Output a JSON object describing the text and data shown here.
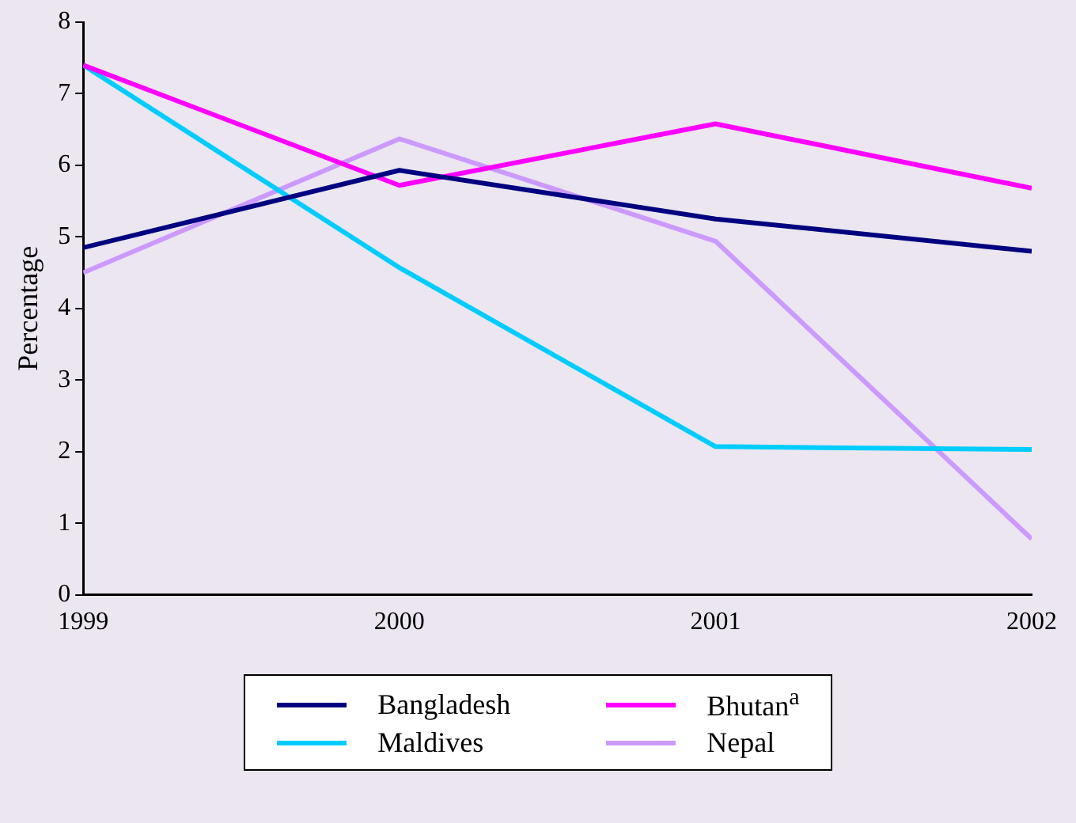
{
  "chart_data": {
    "type": "line",
    "ylabel": "Percentage",
    "x": [
      1999,
      2000,
      2001,
      2002
    ],
    "xlim": [
      1999,
      2002
    ],
    "xticks": [
      1999,
      2000,
      2001,
      2002
    ],
    "ylim": [
      0,
      8
    ],
    "yticks": [
      0,
      1,
      2,
      3,
      4,
      5,
      6,
      7,
      8
    ],
    "legend": "bottom",
    "marker": "none",
    "series": [
      {
        "name": "Bangladesh",
        "color": "#000080",
        "values": [
          4.85,
          5.93,
          5.25,
          4.8
        ]
      },
      {
        "name": "Bhutan$^{a}$",
        "color": "#ff00ff",
        "values": [
          7.4,
          5.72,
          6.58,
          5.68
        ]
      },
      {
        "name": "Maldives",
        "color": "#00ccff",
        "values": [
          7.4,
          4.57,
          2.07,
          2.03
        ]
      },
      {
        "name": "Nepal",
        "color": "#cc99ff",
        "values": [
          4.5,
          6.37,
          4.94,
          0.78
        ]
      }
    ]
  }
}
